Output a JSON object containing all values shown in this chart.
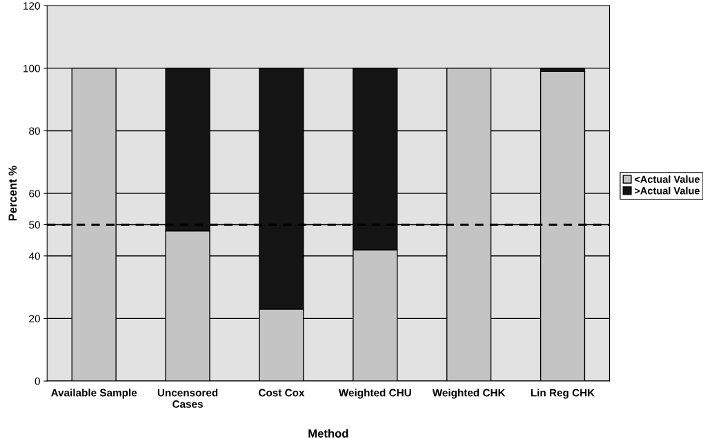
{
  "chart_data": {
    "type": "bar",
    "stacked": true,
    "xlabel": "Method",
    "ylabel": "Percent %",
    "categories": [
      "Available Sample",
      "Uncensored\nCases",
      "Cost Cox",
      "Weighted CHU",
      "Weighted CHK",
      "Lin Reg CHK"
    ],
    "series": [
      {
        "name": "<Actual Value",
        "color": "#c4c4c4",
        "values": [
          100,
          48,
          23,
          42,
          100,
          99
        ]
      },
      {
        "name": ">Actual Value",
        "color": "#141414",
        "values": [
          null,
          52,
          77,
          58,
          null,
          1
        ]
      }
    ],
    "ylim": [
      0,
      120
    ],
    "yticks": [
      0,
      20,
      40,
      50,
      60,
      80,
      100,
      120
    ],
    "grid": "y",
    "legend": "right",
    "ref_lines": [
      {
        "axis": "y",
        "value": 50,
        "color": "#000000",
        "line_style": "dashed"
      }
    ]
  }
}
